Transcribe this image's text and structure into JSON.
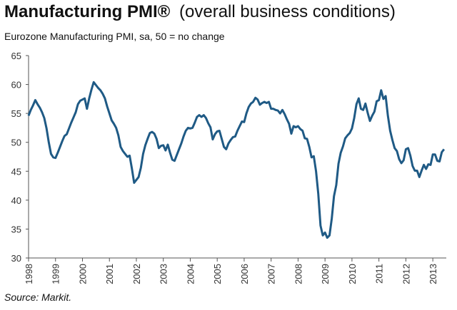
{
  "chart_data": {
    "type": "line",
    "title": "Manufacturing PMI®",
    "title_note": "(overall business conditions)",
    "subtitle": "Eurozone Manufacturing PMI, sa, 50 = no change",
    "source": "Source: Markit.",
    "xlim": [
      1998,
      2013.5
    ],
    "xticks": [
      1998,
      1999,
      2000,
      2001,
      2002,
      2003,
      2004,
      2005,
      2006,
      2007,
      2008,
      2009,
      2010,
      2011,
      2012,
      2013
    ],
    "ylim": [
      30,
      65
    ],
    "yticks": [
      30,
      35,
      40,
      45,
      50,
      55,
      60,
      65
    ],
    "grid": false,
    "series": [
      {
        "color": "#1f5a85",
        "x": [
          1998.0,
          1998.083,
          1998.167,
          1998.25,
          1998.333,
          1998.417,
          1998.5,
          1998.583,
          1998.667,
          1998.75,
          1998.833,
          1998.917,
          1999.0,
          1999.083,
          1999.167,
          1999.25,
          1999.333,
          1999.417,
          1999.5,
          1999.583,
          1999.667,
          1999.75,
          1999.833,
          1999.917,
          2000.0,
          2000.083,
          2000.167,
          2000.25,
          2000.333,
          2000.417,
          2000.5,
          2000.583,
          2000.667,
          2000.75,
          2000.833,
          2000.917,
          2001.0,
          2001.083,
          2001.167,
          2001.25,
          2001.333,
          2001.417,
          2001.5,
          2001.583,
          2001.667,
          2001.75,
          2001.833,
          2001.917,
          2002.0,
          2002.083,
          2002.167,
          2002.25,
          2002.333,
          2002.417,
          2002.5,
          2002.583,
          2002.667,
          2002.75,
          2002.833,
          2002.917,
          2003.0,
          2003.083,
          2003.167,
          2003.25,
          2003.333,
          2003.417,
          2003.5,
          2003.583,
          2003.667,
          2003.75,
          2003.833,
          2003.917,
          2004.0,
          2004.083,
          2004.167,
          2004.25,
          2004.333,
          2004.417,
          2004.5,
          2004.583,
          2004.667,
          2004.75,
          2004.833,
          2004.917,
          2005.0,
          2005.083,
          2005.167,
          2005.25,
          2005.333,
          2005.417,
          2005.5,
          2005.583,
          2005.667,
          2005.75,
          2005.833,
          2005.917,
          2006.0,
          2006.083,
          2006.167,
          2006.25,
          2006.333,
          2006.417,
          2006.5,
          2006.583,
          2006.667,
          2006.75,
          2006.833,
          2006.917,
          2007.0,
          2007.083,
          2007.167,
          2007.25,
          2007.333,
          2007.417,
          2007.5,
          2007.583,
          2007.667,
          2007.75,
          2007.833,
          2007.917,
          2008.0,
          2008.083,
          2008.167,
          2008.25,
          2008.333,
          2008.417,
          2008.5,
          2008.583,
          2008.667,
          2008.75,
          2008.833,
          2008.917,
          2009.0,
          2009.083,
          2009.167,
          2009.25,
          2009.333,
          2009.417,
          2009.5,
          2009.583,
          2009.667,
          2009.75,
          2009.833,
          2009.917,
          2010.0,
          2010.083,
          2010.167,
          2010.25,
          2010.333,
          2010.417,
          2010.5,
          2010.583,
          2010.667,
          2010.75,
          2010.833,
          2010.917,
          2011.0,
          2011.083,
          2011.167,
          2011.25,
          2011.333,
          2011.417,
          2011.5,
          2011.583,
          2011.667,
          2011.75,
          2011.833,
          2011.917,
          2012.0,
          2012.083,
          2012.167,
          2012.25,
          2012.333,
          2012.417,
          2012.5,
          2012.583,
          2012.667,
          2012.75,
          2012.833,
          2012.917,
          2013.0,
          2013.083,
          2013.167,
          2013.25,
          2013.333,
          2013.417
        ],
        "values": [
          54.6,
          55.6,
          56.4,
          57.3,
          56.6,
          56.0,
          55.2,
          54.2,
          52.4,
          50.0,
          48.0,
          47.4,
          47.3,
          48.2,
          49.2,
          50.2,
          51.1,
          51.4,
          52.4,
          53.4,
          54.3,
          55.2,
          56.6,
          57.2,
          57.4,
          57.6,
          55.8,
          57.6,
          59.1,
          60.4,
          59.9,
          59.4,
          59.0,
          58.4,
          57.6,
          56.2,
          55.0,
          53.8,
          53.2,
          52.5,
          51.2,
          49.2,
          48.5,
          48.0,
          47.5,
          47.7,
          45.5,
          43.0,
          43.5,
          44.0,
          45.6,
          48.0,
          49.5,
          50.6,
          51.6,
          51.8,
          51.5,
          50.6,
          49.0,
          49.4,
          49.5,
          48.6,
          49.6,
          48.2,
          47.0,
          46.8,
          47.8,
          48.8,
          49.8,
          51.0,
          52.0,
          52.5,
          52.4,
          52.5,
          53.4,
          54.4,
          54.7,
          54.4,
          54.7,
          54.2,
          53.3,
          52.6,
          50.5,
          51.4,
          51.9,
          52.0,
          50.6,
          49.2,
          48.8,
          49.8,
          50.4,
          50.9,
          51.0,
          52.0,
          52.8,
          53.6,
          53.5,
          55.0,
          56.1,
          56.7,
          57.0,
          57.7,
          57.4,
          56.5,
          56.8,
          57.0,
          56.8,
          57.0,
          55.8,
          55.8,
          55.6,
          55.5,
          55.0,
          55.6,
          54.9,
          54.0,
          53.2,
          51.5,
          52.8,
          52.6,
          52.8,
          52.3,
          52.0,
          50.7,
          50.6,
          49.2,
          47.4,
          47.6,
          45.0,
          41.1,
          35.6,
          33.9,
          34.4,
          33.5,
          33.9,
          36.8,
          40.7,
          42.6,
          46.3,
          48.2,
          49.3,
          50.7,
          51.2,
          51.6,
          52.4,
          54.2,
          56.6,
          57.6,
          55.8,
          55.6,
          56.7,
          55.1,
          53.7,
          54.6,
          55.3,
          57.1,
          57.3,
          59.0,
          57.5,
          58.0,
          54.6,
          52.0,
          50.4,
          49.0,
          48.5,
          47.1,
          46.4,
          46.9,
          48.8,
          49.0,
          47.7,
          45.9,
          45.1,
          45.1,
          44.0,
          45.1,
          46.1,
          45.4,
          46.2,
          46.1,
          47.9,
          47.9,
          46.8,
          46.7,
          48.3,
          48.8
        ]
      }
    ]
  }
}
